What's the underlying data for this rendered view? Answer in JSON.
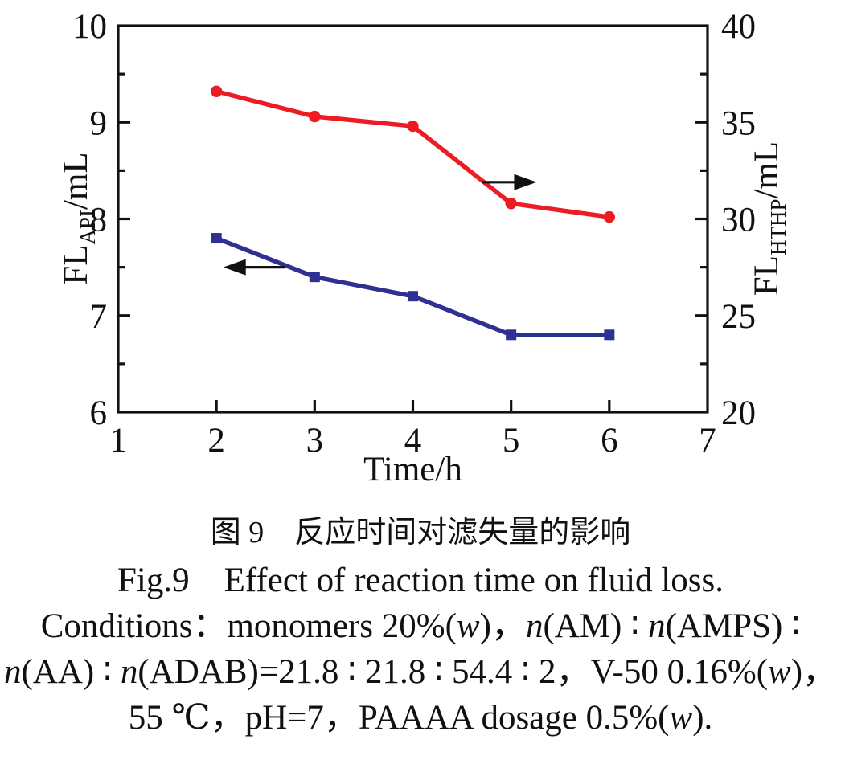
{
  "chart_data": {
    "type": "line",
    "x": [
      2,
      3,
      4,
      5,
      6
    ],
    "series": [
      {
        "name": "FL_API",
        "axis": "left",
        "color": "#2E3192",
        "marker": "square",
        "values": [
          7.8,
          7.4,
          7.2,
          6.8,
          6.8
        ]
      },
      {
        "name": "FL_HTHP",
        "axis": "right",
        "color": "#EC1C24",
        "marker": "circle",
        "values": [
          36.6,
          35.3,
          34.8,
          30.8,
          30.1
        ]
      }
    ],
    "xlabel": "Time/h",
    "xlim": [
      1,
      7
    ],
    "xticks": [
      "1",
      "2",
      "3",
      "4",
      "5",
      "6",
      "7"
    ],
    "left_axis": {
      "label_prefix": "FL",
      "label_sub": "API",
      "label_suffix": "/mL",
      "lim": [
        6,
        10
      ],
      "ticks": [
        "6",
        "7",
        "8",
        "9",
        "10"
      ]
    },
    "right_axis": {
      "label_prefix": "FL",
      "label_sub": "HTHP",
      "label_suffix": "/mL",
      "lim": [
        20,
        40
      ],
      "ticks": [
        "20",
        "25",
        "30",
        "35",
        "40"
      ]
    },
    "grid": false,
    "legend": "none",
    "axis_color": "#111111",
    "annotations": [
      {
        "type": "arrow",
        "points_to": "left-axis",
        "axis": "left",
        "y": 7.5,
        "x_tail": 2.7,
        "x_tip": 2.07
      },
      {
        "type": "arrow",
        "points_to": "right-axis",
        "axis": "right",
        "y": 31.9,
        "x_tail": 4.71,
        "x_tip": 5.26
      }
    ]
  },
  "caption": {
    "lines": [
      {
        "name": "caption-title-zh",
        "segments": [
          {
            "t": "图 9　反应时间对滤失量的影响"
          }
        ]
      },
      {
        "name": "caption-title-en",
        "segments": [
          {
            "t": "Fig.9　Effect of reaction time on fluid loss."
          }
        ]
      },
      {
        "name": "caption-conditions-1",
        "segments": [
          {
            "t": "Conditions：monomers 20%("
          },
          {
            "t": "w",
            "i": true
          },
          {
            "t": ")，"
          },
          {
            "t": "n",
            "i": true
          },
          {
            "t": "(AM) ∶ "
          },
          {
            "t": "n",
            "i": true
          },
          {
            "t": "(AMPS) ∶"
          }
        ]
      },
      {
        "name": "caption-conditions-2",
        "segments": [
          {
            "t": "n",
            "i": true
          },
          {
            "t": "(AA) ∶ "
          },
          {
            "t": "n",
            "i": true
          },
          {
            "t": "(ADAB)=21.8 ∶ 21.8 ∶ 54.4 ∶ 2，V-50 0.16%("
          },
          {
            "t": "w",
            "i": true
          },
          {
            "t": ")，"
          }
        ]
      },
      {
        "name": "caption-conditions-3",
        "segments": [
          {
            "t": "55 ℃，pH=7，PAAAA dosage 0.5%("
          },
          {
            "t": "w",
            "i": true
          },
          {
            "t": ")."
          }
        ]
      }
    ]
  }
}
